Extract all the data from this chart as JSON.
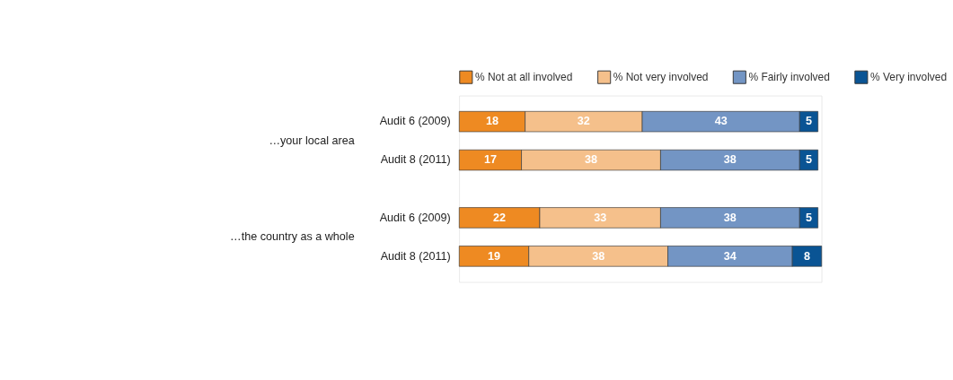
{
  "chart_data": {
    "type": "bar",
    "orientation": "horizontal",
    "stacked": true,
    "data_labels": true,
    "legend": "top",
    "tick_labels": "y",
    "categories": [
      "Audit 6 (2009)",
      "Audit 8 (2011)",
      "Audit 6 (2009)",
      "Audit 8 (2011)"
    ],
    "series": [
      {
        "name": "% Not at all involved",
        "color": "#ee8a22",
        "values": [
          18,
          17,
          22,
          19
        ]
      },
      {
        "name": "% Not very involved",
        "color": "#f5c08b",
        "values": [
          32,
          38,
          33,
          38
        ]
      },
      {
        "name": "% Fairly involved",
        "color": "#7395c4",
        "values": [
          43,
          38,
          38,
          34
        ]
      },
      {
        "name": "% Very involved",
        "color": "#0a5494",
        "values": [
          5,
          5,
          5,
          8
        ]
      }
    ],
    "annotations": [
      "…your local area",
      "…the country as a whole"
    ]
  }
}
